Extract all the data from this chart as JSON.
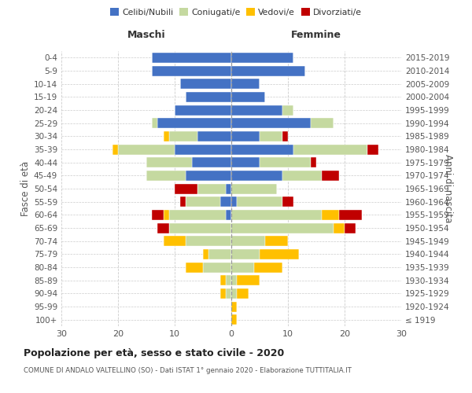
{
  "age_groups": [
    "100+",
    "95-99",
    "90-94",
    "85-89",
    "80-84",
    "75-79",
    "70-74",
    "65-69",
    "60-64",
    "55-59",
    "50-54",
    "45-49",
    "40-44",
    "35-39",
    "30-34",
    "25-29",
    "20-24",
    "15-19",
    "10-14",
    "5-9",
    "0-4"
  ],
  "birth_years": [
    "≤ 1919",
    "1920-1924",
    "1925-1929",
    "1930-1934",
    "1935-1939",
    "1940-1944",
    "1945-1949",
    "1950-1954",
    "1955-1959",
    "1960-1964",
    "1965-1969",
    "1970-1974",
    "1975-1979",
    "1980-1984",
    "1985-1989",
    "1990-1994",
    "1995-1999",
    "2000-2004",
    "2005-2009",
    "2010-2014",
    "2015-2019"
  ],
  "maschi": {
    "celibi": [
      0,
      0,
      0,
      0,
      0,
      0,
      0,
      0,
      1,
      2,
      1,
      8,
      7,
      10,
      6,
      13,
      10,
      8,
      9,
      14,
      14
    ],
    "coniugati": [
      0,
      0,
      1,
      1,
      5,
      4,
      8,
      11,
      10,
      6,
      5,
      7,
      8,
      10,
      5,
      1,
      0,
      0,
      0,
      0,
      0
    ],
    "vedovi": [
      0,
      0,
      1,
      1,
      3,
      1,
      4,
      0,
      1,
      0,
      0,
      0,
      0,
      1,
      1,
      0,
      0,
      0,
      0,
      0,
      0
    ],
    "divorziati": [
      0,
      0,
      0,
      0,
      0,
      0,
      0,
      2,
      2,
      1,
      4,
      0,
      0,
      0,
      0,
      0,
      0,
      0,
      0,
      0,
      0
    ]
  },
  "femmine": {
    "celibi": [
      0,
      0,
      0,
      0,
      0,
      0,
      0,
      0,
      0,
      1,
      0,
      9,
      5,
      11,
      5,
      14,
      9,
      6,
      5,
      13,
      11
    ],
    "coniugati": [
      0,
      0,
      1,
      1,
      4,
      5,
      6,
      18,
      16,
      8,
      8,
      7,
      9,
      13,
      4,
      4,
      2,
      0,
      0,
      0,
      0
    ],
    "vedovi": [
      1,
      1,
      2,
      4,
      5,
      7,
      4,
      2,
      3,
      0,
      0,
      0,
      0,
      0,
      0,
      0,
      0,
      0,
      0,
      0,
      0
    ],
    "divorziati": [
      0,
      0,
      0,
      0,
      0,
      0,
      0,
      2,
      4,
      2,
      0,
      3,
      1,
      2,
      1,
      0,
      0,
      0,
      0,
      0,
      0
    ]
  },
  "color_celibi": "#4472c4",
  "color_coniugati": "#c5d9a0",
  "color_vedovi": "#ffc000",
  "color_divorziati": "#c00000",
  "title": "Popolazione per età, sesso e stato civile - 2020",
  "subtitle": "COMUNE DI ANDALO VALTELLINO (SO) - Dati ISTAT 1° gennaio 2020 - Elaborazione TUTTITALIA.IT",
  "label_maschi": "Maschi",
  "label_femmine": "Femmine",
  "ylabel_left": "Fasce di età",
  "ylabel_right": "Anni di nascita",
  "xlim": 30,
  "legend_labels": [
    "Celibi/Nubili",
    "Coniugati/e",
    "Vedovi/e",
    "Divorziati/e"
  ],
  "bg_color": "#ffffff",
  "grid_color": "#cccccc"
}
